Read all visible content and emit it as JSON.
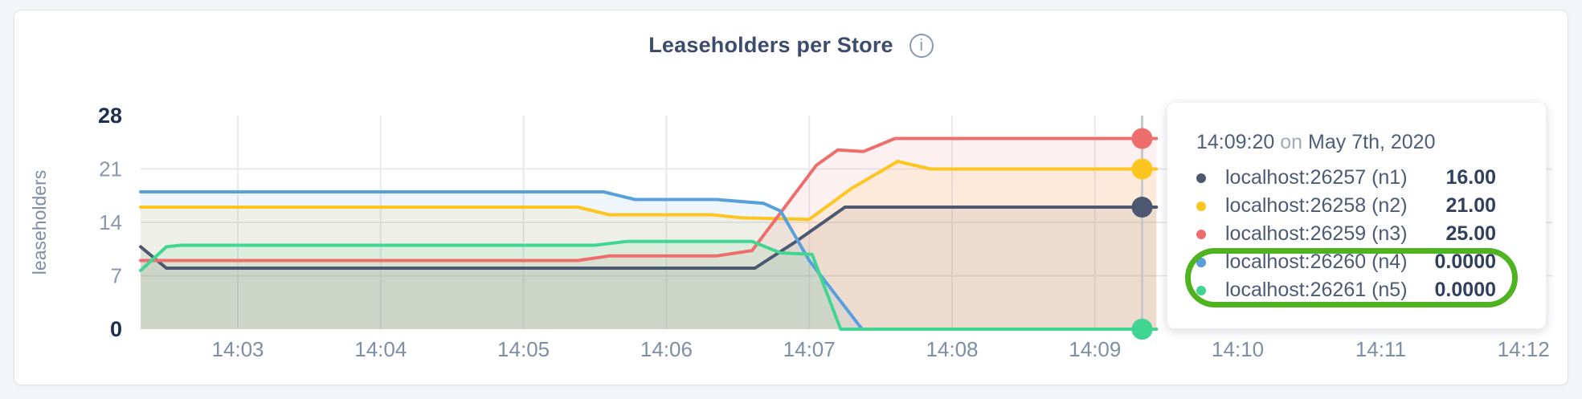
{
  "card": {
    "title": "Leaseholders per Store",
    "info_icon": "i"
  },
  "chart_data": {
    "type": "area",
    "title": "Leaseholders per Store",
    "xlabel": "",
    "ylabel": "leaseholders",
    "ylim": [
      0,
      28
    ],
    "grid": true,
    "legend_position": "tooltip",
    "y_ticks": [
      0,
      7,
      14,
      21,
      28
    ],
    "y_gridlines": [
      7,
      14,
      21
    ],
    "x_ticks": [
      {
        "minute": 3,
        "label": "14:03"
      },
      {
        "minute": 4,
        "label": "14:04"
      },
      {
        "minute": 5,
        "label": "14:05"
      },
      {
        "minute": 6,
        "label": "14:06"
      },
      {
        "minute": 7,
        "label": "14:07"
      },
      {
        "minute": 8,
        "label": "14:08"
      },
      {
        "minute": 9,
        "label": "14:09"
      },
      {
        "minute": 10,
        "label": "14:10"
      },
      {
        "minute": 11,
        "label": "14:11"
      },
      {
        "minute": 12,
        "label": "14:12"
      }
    ],
    "x_range_minutes": [
      2.32,
      9.43
    ],
    "series": [
      {
        "name": "localhost:26257 (n1)",
        "color": "#4c5870",
        "points": [
          [
            2.32,
            10.8
          ],
          [
            2.5,
            8
          ],
          [
            6.62,
            8
          ],
          [
            6.9,
            11.4
          ],
          [
            7.25,
            16
          ],
          [
            9.43,
            16
          ]
        ]
      },
      {
        "name": "localhost:26258 (n2)",
        "color": "#fcc520",
        "points": [
          [
            2.32,
            16
          ],
          [
            5.38,
            16
          ],
          [
            5.6,
            15
          ],
          [
            6.32,
            15
          ],
          [
            6.52,
            14.6
          ],
          [
            7.0,
            14.4
          ],
          [
            7.3,
            18.5
          ],
          [
            7.62,
            22
          ],
          [
            7.85,
            21
          ],
          [
            9.43,
            21
          ]
        ]
      },
      {
        "name": "localhost:26259 (n3)",
        "color": "#ee6e6e",
        "points": [
          [
            2.32,
            9
          ],
          [
            5.38,
            9
          ],
          [
            5.6,
            9.6
          ],
          [
            6.35,
            9.6
          ],
          [
            6.6,
            10.3
          ],
          [
            7.05,
            21.5
          ],
          [
            7.2,
            23.5
          ],
          [
            7.38,
            23.3
          ],
          [
            7.6,
            25
          ],
          [
            9.43,
            25
          ]
        ]
      },
      {
        "name": "localhost:26260 (n4)",
        "color": "#57a0db",
        "points": [
          [
            2.32,
            18
          ],
          [
            5.56,
            18
          ],
          [
            5.78,
            17
          ],
          [
            6.35,
            17
          ],
          [
            6.68,
            16.5
          ],
          [
            6.8,
            15.5
          ],
          [
            7.0,
            9
          ],
          [
            7.37,
            0
          ],
          [
            9.43,
            0
          ]
        ]
      },
      {
        "name": "localhost:26261 (n5)",
        "color": "#40d692",
        "points": [
          [
            2.32,
            7.7
          ],
          [
            2.5,
            10.8
          ],
          [
            2.6,
            11
          ],
          [
            5.5,
            11
          ],
          [
            5.72,
            11.5
          ],
          [
            6.6,
            11.5
          ],
          [
            6.8,
            10
          ],
          [
            7.02,
            9.8
          ],
          [
            7.22,
            0
          ],
          [
            9.43,
            0
          ]
        ]
      }
    ],
    "hover": {
      "minute": 9.33,
      "time_label": "14:09:20",
      "date_label": "May 7th, 2020",
      "values": [
        16,
        21,
        25,
        0,
        0
      ]
    }
  },
  "tooltip": {
    "time": "14:09:20",
    "conj": "on",
    "date": "May 7th, 2020",
    "rows": [
      {
        "label": "localhost:26257 (n1)",
        "value": "16.00",
        "color": "#4c5870"
      },
      {
        "label": "localhost:26258 (n2)",
        "value": "21.00",
        "color": "#fcc520"
      },
      {
        "label": "localhost:26259 (n3)",
        "value": "25.00",
        "color": "#ee6e6e"
      },
      {
        "label": "localhost:26260 (n4)",
        "value": "0.0000",
        "color": "#57a0db"
      },
      {
        "label": "localhost:26261 (n5)",
        "value": "0.0000",
        "color": "#40d692"
      }
    ],
    "annotation_color": "#4fb320"
  }
}
